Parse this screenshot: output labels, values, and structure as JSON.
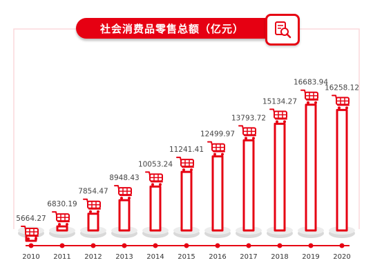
{
  "title": "社会消费品零售总额（亿元）",
  "title_icon": "document-magnifier-icon",
  "bar_icon": "shopping-cart-icon",
  "colors": {
    "accent": "#e60012",
    "frame": "#fbd9db",
    "base": "#d9d9d9",
    "text": "#333333",
    "value_text": "#444444",
    "axis": "#e60012"
  },
  "chart_data": {
    "type": "bar",
    "title": "社会消费品零售总额（亿元）",
    "xlabel": "",
    "ylabel": "",
    "categories": [
      "2010",
      "2011",
      "2012",
      "2013",
      "2014",
      "2015",
      "2016",
      "2017",
      "2018",
      "2019",
      "2020"
    ],
    "values": [
      5664.27,
      6830.19,
      7854.47,
      8948.43,
      10053.24,
      11241.41,
      12499.97,
      13793.72,
      15134.27,
      16683.94,
      16258.12
    ],
    "value_labels": [
      "5664.27",
      "6830.19",
      "7854.47",
      "8948.43",
      "10053.24",
      "11241.41",
      "12499.97",
      "13793.72",
      "15134.27",
      "16683.94",
      "16258.12"
    ],
    "grid": false,
    "legend": "none"
  }
}
